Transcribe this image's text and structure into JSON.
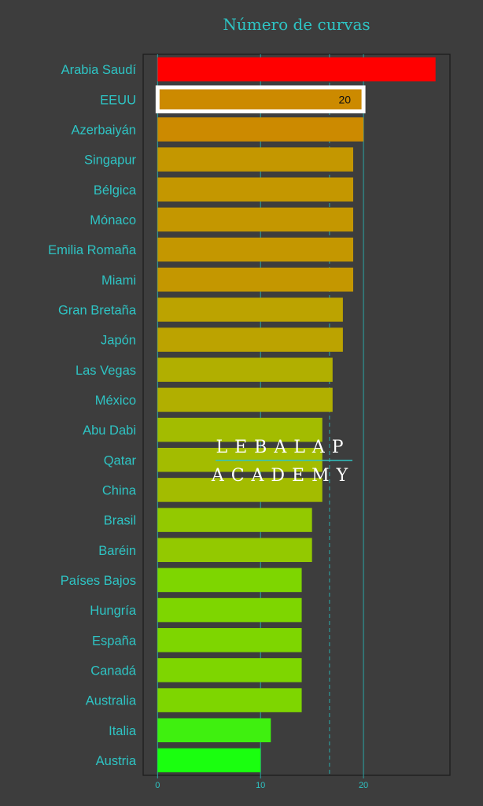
{
  "chart_data": {
    "type": "bar",
    "orientation": "horizontal",
    "title": "Número de curvas",
    "categories": [
      "Arabia Saudí",
      "EEUU",
      "Azerbaiyán",
      "Singapur",
      "Bélgica",
      "Mónaco",
      "Emilia Romaña",
      "Miami",
      "Gran Bretaña",
      "Japón",
      "Las Vegas",
      "México",
      "Abu Dabi",
      "Qatar",
      "China",
      "Brasil",
      "Baréin",
      "Países Bajos",
      "Hungría",
      "España",
      "Canadá",
      "Australia",
      "Italia",
      "Austria"
    ],
    "values": [
      27,
      20,
      20,
      19,
      19,
      19,
      19,
      19,
      18,
      18,
      17,
      17,
      16,
      16,
      16,
      15,
      15,
      14,
      14,
      14,
      14,
      14,
      11,
      10
    ],
    "xlim": [
      -1.4,
      28.4
    ],
    "xticks": [
      0,
      10,
      20
    ],
    "highlight": {
      "category": "EEUU",
      "value_label": "20"
    },
    "reference_lines": {
      "solid": [
        0,
        10,
        20
      ],
      "dashed": [
        16.7
      ]
    },
    "colors": [
      "#ff0000",
      "#cc8a00",
      "#cc8a00",
      "#c49700",
      "#c49700",
      "#c49700",
      "#c49700",
      "#c49700",
      "#bca300",
      "#bca300",
      "#b1af00",
      "#b1af00",
      "#a3bc00",
      "#a3bc00",
      "#a3bc00",
      "#93c900",
      "#93c900",
      "#7ed600",
      "#7ed600",
      "#7ed600",
      "#7ed600",
      "#7ed600",
      "#3ff00f",
      "#1aff0f"
    ],
    "text_color": "#2ec4c4",
    "line_color": "#2aa7a7",
    "plot_background": "#3d3d3d"
  },
  "watermark": {
    "line1": "LEBALAP",
    "line2": "ACADEMY"
  }
}
